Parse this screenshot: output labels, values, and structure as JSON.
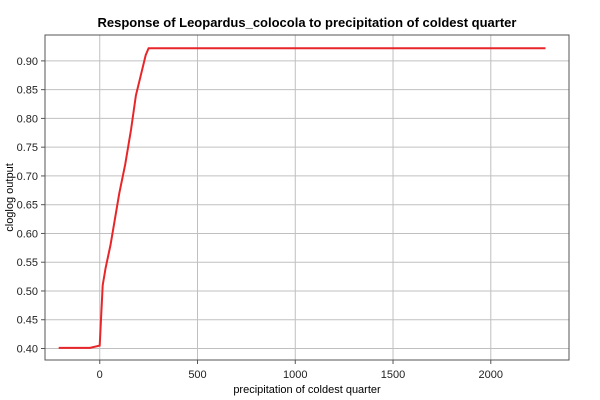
{
  "chart_data": {
    "type": "line",
    "title": "Response of Leopardus_colocola to precipitation of coldest quarter",
    "xlabel": "precipitation of coldest quarter",
    "ylabel": "cloglog output",
    "xlim": [
      -280,
      2400
    ],
    "ylim": [
      0.38,
      0.945
    ],
    "xticks": [
      0,
      500,
      1000,
      1500,
      2000
    ],
    "yticks": [
      0.4,
      0.45,
      0.5,
      0.55,
      0.6,
      0.65,
      0.7,
      0.75,
      0.8,
      0.85,
      0.9
    ],
    "grid": true,
    "series": [
      {
        "color": "#e8262a",
        "x": [
          -210,
          -50,
          0,
          5,
          15,
          30,
          55,
          80,
          100,
          130,
          160,
          185,
          210,
          235,
          250,
          600,
          1200,
          1800,
          2280
        ],
        "y": [
          0.401,
          0.401,
          0.405,
          0.44,
          0.51,
          0.54,
          0.58,
          0.63,
          0.67,
          0.72,
          0.78,
          0.84,
          0.875,
          0.91,
          0.922,
          0.922,
          0.922,
          0.922,
          0.922
        ]
      }
    ]
  }
}
